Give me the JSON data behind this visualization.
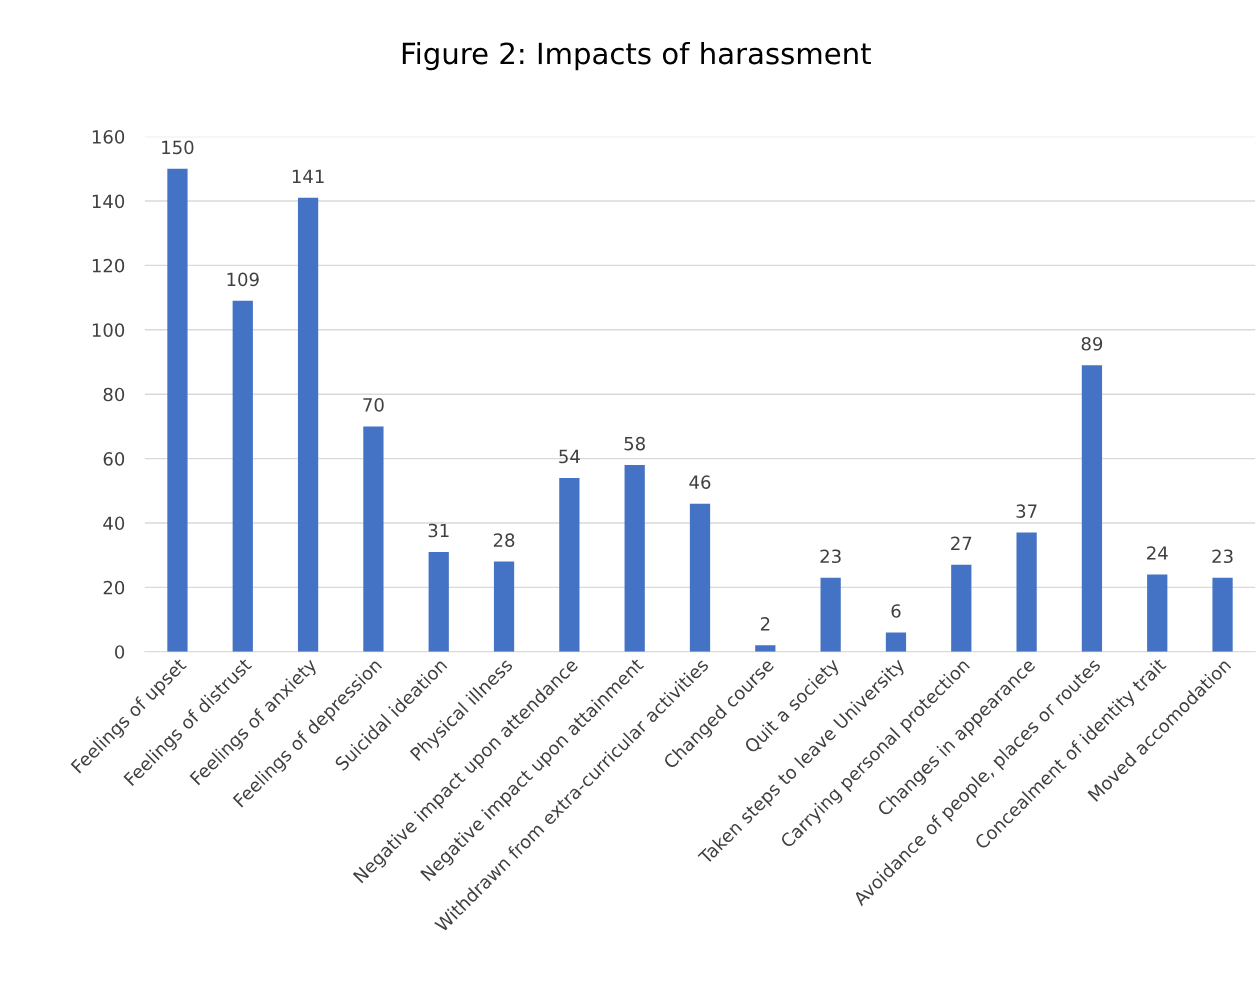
{
  "chart_data": {
    "type": "bar",
    "title": "Figure 2: Impacts of harassment",
    "categories": [
      "Feelings of upset",
      "Feelings of distrust",
      "Feelings of anxiety",
      "Feelings of depression",
      "Suicidal ideation",
      "Physical illness",
      "Negative impact upon attendance",
      "Negative impact upon attainment",
      "Withdrawn from extra-curricular activities",
      "Changed course",
      "Quit a society",
      "Taken steps to leave University",
      "Carrying personal protection",
      "Changes in appearance",
      "Avoidance of people, places or routes",
      "Concealment of identity trait",
      "Moved accomodation"
    ],
    "values": [
      150,
      109,
      141,
      70,
      31,
      28,
      54,
      58,
      46,
      2,
      23,
      6,
      27,
      37,
      89,
      24,
      23
    ],
    "color": "#4472c4",
    "ylim": [
      0,
      160
    ],
    "yticks": [
      0,
      20,
      40,
      60,
      80,
      100,
      120,
      140,
      160
    ],
    "grid": "y",
    "data_labels": true
  }
}
